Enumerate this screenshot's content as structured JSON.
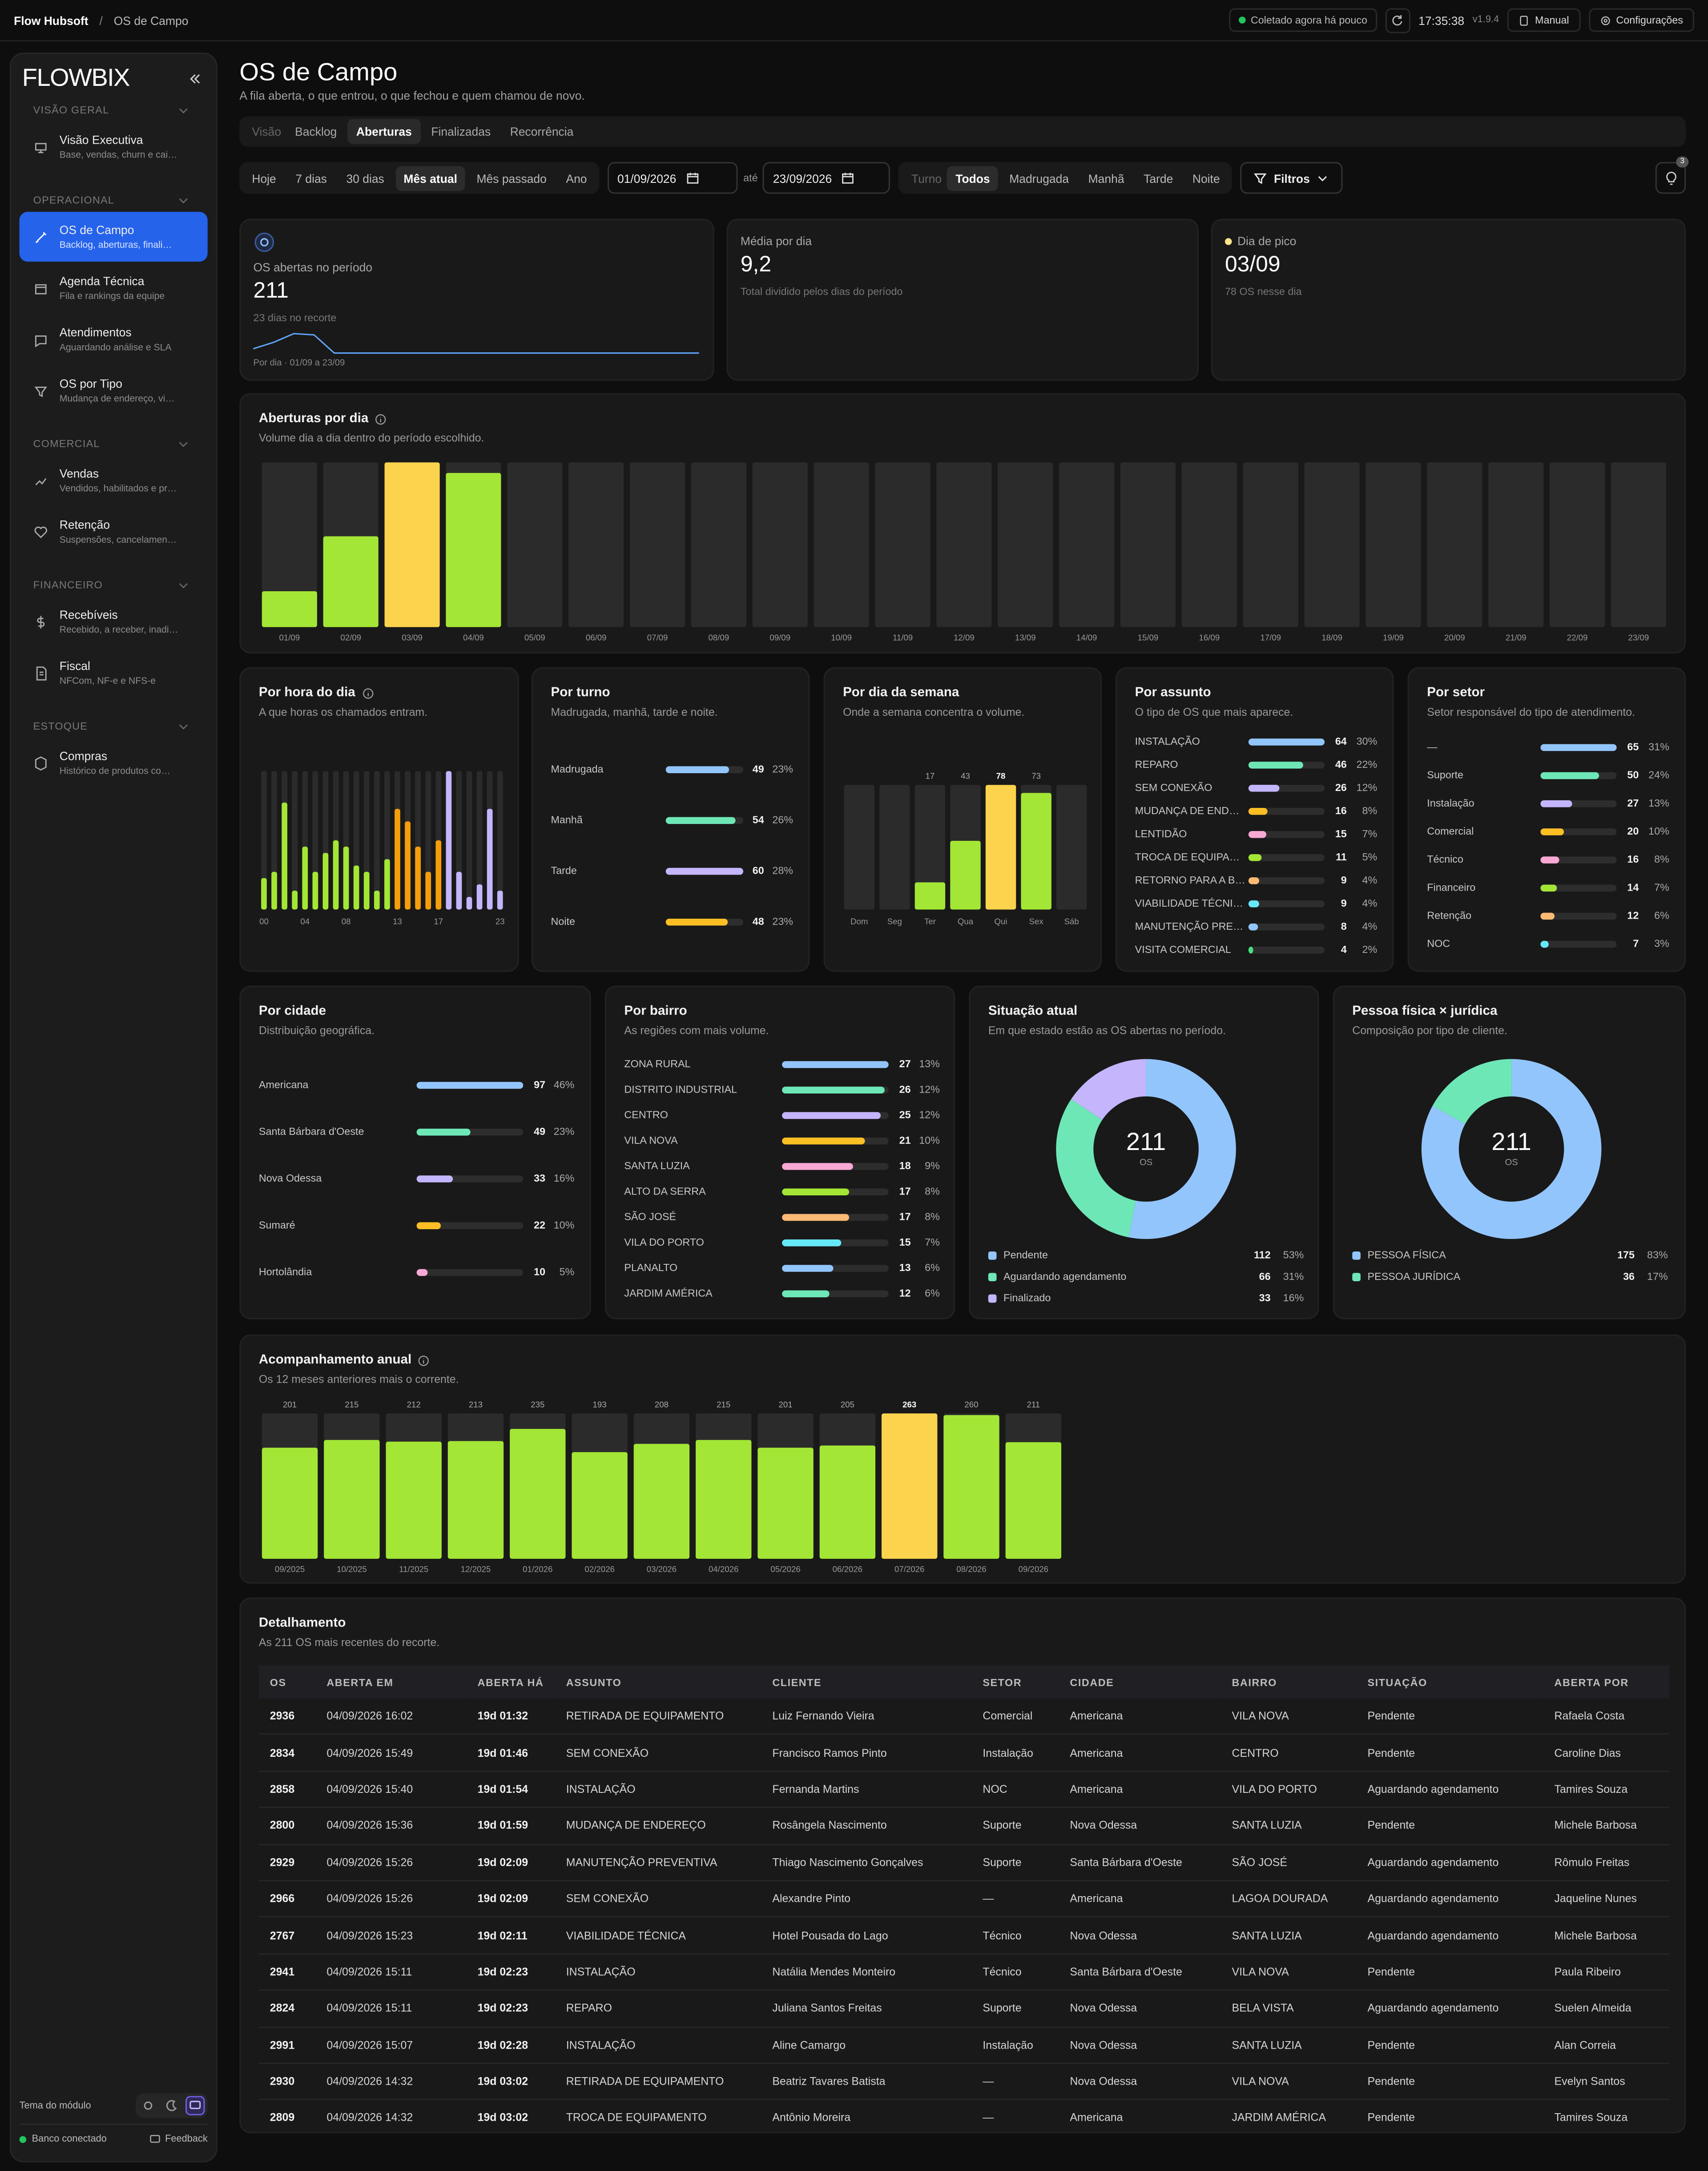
{
  "topbar": {
    "brand": "Flow Hubsoft",
    "separator": "/",
    "page": "OS de Campo",
    "status": "Coletado agora há pouco",
    "time": "17:35:38",
    "version": "v1.9.4",
    "manual": "Manual",
    "settings": "Configurações"
  },
  "sidebar": {
    "logo": "FLOWBIX",
    "sections": [
      {
        "title": "VISÃO GERAL",
        "items": [
          {
            "label": "Visão Executiva",
            "desc": "Base, vendas, churn e cai…",
            "active": false
          }
        ]
      },
      {
        "title": "OPERACIONAL",
        "items": [
          {
            "label": "OS de Campo",
            "desc": "Backlog, aberturas, finali…",
            "active": true
          },
          {
            "label": "Agenda Técnica",
            "desc": "Fila e rankings da equipe",
            "active": false
          },
          {
            "label": "Atendimentos",
            "desc": "Aguardando análise e SLA",
            "active": false
          },
          {
            "label": "OS por Tipo",
            "desc": "Mudança de endereço, vi…",
            "active": false
          }
        ]
      },
      {
        "title": "COMERCIAL",
        "items": [
          {
            "label": "Vendas",
            "desc": "Vendidos, habilitados e pr…",
            "active": false
          },
          {
            "label": "Retenção",
            "desc": "Suspensões, cancelamen…",
            "active": false
          }
        ]
      },
      {
        "title": "FINANCEIRO",
        "items": [
          {
            "label": "Recebíveis",
            "desc": "Recebido, a receber, inadi…",
            "active": false
          },
          {
            "label": "Fiscal",
            "desc": "NFCom, NF-e e NFS-e",
            "active": false
          }
        ]
      },
      {
        "title": "ESTOQUE",
        "items": [
          {
            "label": "Compras",
            "desc": "Histórico de produtos co…",
            "active": false
          }
        ]
      }
    ],
    "theme_label": "Tema do módulo",
    "db_status": "Banco conectado",
    "feedback": "Feedback"
  },
  "header": {
    "title": "OS de Campo",
    "subtitle": "A fila aberta, o que entrou, o que fechou e quem chamou de novo."
  },
  "tabs": {
    "label": "Visão",
    "items": [
      "Backlog",
      "Aberturas",
      "Finalizadas",
      "Recorrência"
    ],
    "active": 1
  },
  "filters": {
    "periods": [
      "Hoje",
      "7 dias",
      "30 dias",
      "Mês atual",
      "Mês passado",
      "Ano"
    ],
    "active_period": 3,
    "date_from": "01/09/2026",
    "date_sep": "até",
    "date_to": "23/09/2026",
    "shift_label": "Turno",
    "shifts": [
      "Todos",
      "Madrugada",
      "Manhã",
      "Tarde",
      "Noite"
    ],
    "active_shift": 0,
    "filters_button": "Filtros",
    "alerts_count": 3
  },
  "kpis": [
    {
      "label": "OS abertas no período",
      "value": 211,
      "note": "23 dias no recorte",
      "caption": "Por dia · 01/09 a 23/09"
    },
    {
      "label": "Média por dia",
      "value": "9,2",
      "note": "Total dividido pelos dias do período"
    },
    {
      "label": "Dia de pico",
      "value": "03/09",
      "note": "78 OS nesse dia",
      "dot_color": "#fde68a"
    }
  ],
  "charts": {
    "daily": {
      "type": "column",
      "title": "Aberturas por dia",
      "info": true,
      "subtitle": "Volume dia a dia dentro do período escolhido.",
      "categories": [
        "01/09",
        "02/09",
        "03/09",
        "04/09",
        "05/09",
        "06/09",
        "07/09",
        "08/09",
        "09/09",
        "10/09",
        "11/09",
        "12/09",
        "13/09",
        "14/09",
        "15/09",
        "16/09",
        "17/09",
        "18/09",
        "19/09",
        "20/09",
        "21/09",
        "22/09",
        "23/09"
      ],
      "values": [
        17,
        43,
        78,
        73,
        0,
        0,
        0,
        0,
        0,
        0,
        0,
        0,
        0,
        0,
        0,
        0,
        0,
        0,
        0,
        0,
        0,
        0,
        0
      ],
      "color": "#a3e635",
      "peak_color": "#fcd34d"
    },
    "hourly": {
      "type": "column",
      "title": "Por hora do dia",
      "info": true,
      "subtitle": "A que horas os chamados entram.",
      "categories": [
        "00",
        null,
        null,
        null,
        "04",
        null,
        null,
        null,
        "08",
        null,
        null,
        null,
        null,
        "13",
        null,
        null,
        null,
        "17",
        null,
        null,
        null,
        null,
        null,
        "23"
      ],
      "values": [
        5,
        6,
        17,
        3,
        10,
        6,
        9,
        11,
        10,
        7,
        6,
        3,
        8,
        16,
        14,
        10,
        6,
        11,
        22,
        6,
        2,
        4,
        16,
        3
      ],
      "colors": [
        "#a3e635",
        "#a3e635",
        "#a3e635",
        "#a3e635",
        "#a3e635",
        "#a3e635",
        "#a3e635",
        "#a3e635",
        "#a3e635",
        "#a3e635",
        "#a3e635",
        "#a3e635",
        "#a3e635",
        "#f59e0b",
        "#f59e0b",
        "#f59e0b",
        "#f59e0b",
        "#f59e0b",
        "#c4b5fd",
        "#c4b5fd",
        "#c4b5fd",
        "#c4b5fd",
        "#c4b5fd",
        "#c4b5fd"
      ]
    },
    "shift": {
      "type": "bar_list",
      "title": "Por turno",
      "subtitle": "Madrugada, manhã, tarde e noite.",
      "categories": [
        "Madrugada",
        "Manhã",
        "Tarde",
        "Noite"
      ],
      "values": [
        49,
        54,
        60,
        48
      ],
      "share_labels": [
        "23%",
        "26%",
        "28%",
        "23%"
      ],
      "colors": [
        "#93c5fd",
        "#6ee7b7",
        "#c4b5fd",
        "#fbbf24"
      ]
    },
    "weekday": {
      "type": "column",
      "title": "Por dia da semana",
      "subtitle": "Onde a semana concentra o volume.",
      "categories": [
        "Dom",
        "Seg",
        "Ter",
        "Qua",
        "Qui",
        "Sex",
        "Sáb"
      ],
      "values": [
        0,
        0,
        17,
        43,
        78,
        73,
        0
      ],
      "color": "#a3e635",
      "peak_color": "#fcd34d",
      "show_values": true
    },
    "subject": {
      "type": "bar_list",
      "title": "Por assunto",
      "subtitle": "O tipo de OS que mais aparece.",
      "categories": [
        "INSTALAÇÃO",
        "REPARO",
        "SEM CONEXÃO",
        "MUDANÇA DE END…",
        "LENTIDÃO",
        "TROCA DE EQUIPA…",
        "RETORNO PARA A B…",
        "VIABILIDADE TÉCNI…",
        "MANUTENÇÃO PRE…",
        "VISITA COMERCIAL"
      ],
      "values": [
        64,
        46,
        26,
        16,
        15,
        11,
        9,
        9,
        8,
        4
      ],
      "share_labels": [
        "30%",
        "22%",
        "12%",
        "8%",
        "7%",
        "5%",
        "4%",
        "4%",
        "4%",
        "2%"
      ],
      "colors": [
        "#93c5fd",
        "#6ee7b7",
        "#c4b5fd",
        "#fbbf24",
        "#f9a8d4",
        "#a3e635",
        "#fdba74",
        "#67e8f9",
        "#93c5fd",
        "#4ade80"
      ]
    },
    "sector": {
      "type": "bar_list",
      "title": "Por setor",
      "subtitle": "Setor responsável do tipo de atendimento.",
      "categories": [
        "—",
        "Suporte",
        "Instalação",
        "Comercial",
        "Técnico",
        "Financeiro",
        "Retenção",
        "NOC"
      ],
      "values": [
        65,
        50,
        27,
        20,
        16,
        14,
        12,
        7
      ],
      "share_labels": [
        "31%",
        "24%",
        "13%",
        "10%",
        "8%",
        "7%",
        "6%",
        "3%"
      ],
      "colors": [
        "#93c5fd",
        "#6ee7b7",
        "#c4b5fd",
        "#fbbf24",
        "#f9a8d4",
        "#a3e635",
        "#fdba74",
        "#67e8f9"
      ]
    },
    "city": {
      "type": "bar_list",
      "title": "Por cidade",
      "subtitle": "Distribuição geográfica.",
      "categories": [
        "Americana",
        "Santa Bárbara d'Oeste",
        "Nova Odessa",
        "Sumaré",
        "Hortolândia"
      ],
      "values": [
        97,
        49,
        33,
        22,
        10
      ],
      "share_labels": [
        "46%",
        "23%",
        "16%",
        "10%",
        "5%"
      ],
      "colors": [
        "#93c5fd",
        "#6ee7b7",
        "#c4b5fd",
        "#fbbf24",
        "#f9a8d4"
      ]
    },
    "neighborhood": {
      "type": "bar_list",
      "title": "Por bairro",
      "subtitle": "As regiões com mais volume.",
      "categories": [
        "ZONA RURAL",
        "DISTRITO INDUSTRIAL",
        "CENTRO",
        "VILA NOVA",
        "SANTA LUZIA",
        "ALTO DA SERRA",
        "SÃO JOSÉ",
        "VILA DO PORTO",
        "PLANALTO",
        "JARDIM AMÉRICA"
      ],
      "values": [
        27,
        26,
        25,
        21,
        18,
        17,
        17,
        15,
        13,
        12
      ],
      "share_labels": [
        "13%",
        "12%",
        "12%",
        "10%",
        "9%",
        "8%",
        "8%",
        "7%",
        "6%",
        "6%"
      ],
      "colors": [
        "#93c5fd",
        "#6ee7b7",
        "#c4b5fd",
        "#fbbf24",
        "#f9a8d4",
        "#a3e635",
        "#fdba74",
        "#67e8f9",
        "#93c5fd",
        "#6ee7b7"
      ]
    },
    "status": {
      "type": "donut",
      "title": "Situação atual",
      "subtitle": "Em que estado estão as OS abertas no período.",
      "center_value": 211,
      "center_label": "OS",
      "categories": [
        "Pendente",
        "Aguardando agendamento",
        "Finalizado"
      ],
      "values": [
        112,
        66,
        33
      ],
      "share_labels": [
        "53%",
        "31%",
        "16%"
      ],
      "colors": [
        "#93c5fd",
        "#6ee7b7",
        "#c4b5fd"
      ]
    },
    "person": {
      "type": "donut",
      "title": "Pessoa física × jurídica",
      "subtitle": "Composição por tipo de cliente.",
      "center_value": 211,
      "center_label": "OS",
      "categories": [
        "PESSOA FÍSICA",
        "PESSOA JURÍDICA"
      ],
      "values": [
        175,
        36
      ],
      "share_labels": [
        "83%",
        "17%"
      ],
      "colors": [
        "#93c5fd",
        "#6ee7b7"
      ]
    },
    "annual": {
      "type": "column",
      "title": "Acompanhamento anual",
      "info": true,
      "subtitle": "Os 12 meses anteriores mais o corrente.",
      "categories": [
        "09/2025",
        "10/2025",
        "11/2025",
        "12/2025",
        "01/2026",
        "02/2026",
        "03/2026",
        "04/2026",
        "05/2026",
        "06/2026",
        "07/2026",
        "08/2026",
        "09/2026"
      ],
      "values": [
        201,
        215,
        212,
        213,
        235,
        193,
        208,
        215,
        201,
        205,
        263,
        260,
        211
      ],
      "color": "#a3e635",
      "peak_color": "#fcd34d",
      "show_values": true
    }
  },
  "table": {
    "title": "Detalhamento",
    "subtitle": "As 211 OS mais recentes do recorte.",
    "columns": [
      "OS",
      "ABERTA EM",
      "ABERTA HÁ",
      "ASSUNTO",
      "CLIENTE",
      "SETOR",
      "CIDADE",
      "BAIRRO",
      "SITUAÇÃO",
      "ABERTA POR"
    ],
    "rows": [
      [
        2936,
        "04/09/2026 16:02",
        "19d 01:32",
        "RETIRADA DE EQUIPAMENTO",
        "Luiz Fernando Vieira",
        "Comercial",
        "Americana",
        "VILA NOVA",
        "Pendente",
        "Rafaela Costa"
      ],
      [
        2834,
        "04/09/2026 15:49",
        "19d 01:46",
        "SEM CONEXÃO",
        "Francisco Ramos Pinto",
        "Instalação",
        "Americana",
        "CENTRO",
        "Pendente",
        "Caroline Dias"
      ],
      [
        2858,
        "04/09/2026 15:40",
        "19d 01:54",
        "INSTALAÇÃO",
        "Fernanda Martins",
        "NOC",
        "Americana",
        "VILA DO PORTO",
        "Aguardando agendamento",
        "Tamires Souza"
      ],
      [
        2800,
        "04/09/2026 15:36",
        "19d 01:59",
        "MUDANÇA DE ENDEREÇO",
        "Rosângela Nascimento",
        "Suporte",
        "Nova Odessa",
        "SANTA LUZIA",
        "Pendente",
        "Michele Barbosa"
      ],
      [
        2929,
        "04/09/2026 15:26",
        "19d 02:09",
        "MANUTENÇÃO PREVENTIVA",
        "Thiago Nascimento Gonçalves",
        "Suporte",
        "Santa Bárbara d'Oeste",
        "SÃO JOSÉ",
        "Aguardando agendamento",
        "Rômulo Freitas"
      ],
      [
        2966,
        "04/09/2026 15:26",
        "19d 02:09",
        "SEM CONEXÃO",
        "Alexandre Pinto",
        "—",
        "Americana",
        "LAGOA DOURADA",
        "Aguardando agendamento",
        "Jaqueline Nunes"
      ],
      [
        2767,
        "04/09/2026 15:23",
        "19d 02:11",
        "VIABILIDADE TÉCNICA",
        "Hotel Pousada do Lago",
        "Técnico",
        "Nova Odessa",
        "SANTA LUZIA",
        "Aguardando agendamento",
        "Michele Barbosa"
      ],
      [
        2941,
        "04/09/2026 15:11",
        "19d 02:23",
        "INSTALAÇÃO",
        "Natália Mendes Monteiro",
        "Técnico",
        "Santa Bárbara d'Oeste",
        "VILA NOVA",
        "Pendente",
        "Paula Ribeiro"
      ],
      [
        2824,
        "04/09/2026 15:11",
        "19d 02:23",
        "REPARO",
        "Juliana Santos Freitas",
        "Suporte",
        "Nova Odessa",
        "BELA VISTA",
        "Aguardando agendamento",
        "Suelen Almeida"
      ],
      [
        2991,
        "04/09/2026 15:07",
        "19d 02:28",
        "INSTALAÇÃO",
        "Aline Camargo",
        "Instalação",
        "Nova Odessa",
        "SANTA LUZIA",
        "Pendente",
        "Alan Correia"
      ],
      [
        2930,
        "04/09/2026 14:32",
        "19d 03:02",
        "RETIRADA DE EQUIPAMENTO",
        "Beatriz Tavares Batista",
        "—",
        "Nova Odessa",
        "VILA NOVA",
        "Pendente",
        "Evelyn Santos"
      ],
      [
        2809,
        "04/09/2026 14:32",
        "19d 03:02",
        "TROCA DE EQUIPAMENTO",
        "Antônio Moreira",
        "—",
        "Americana",
        "JARDIM AMÉRICA",
        "Pendente",
        "Tamires Souza"
      ]
    ]
  }
}
